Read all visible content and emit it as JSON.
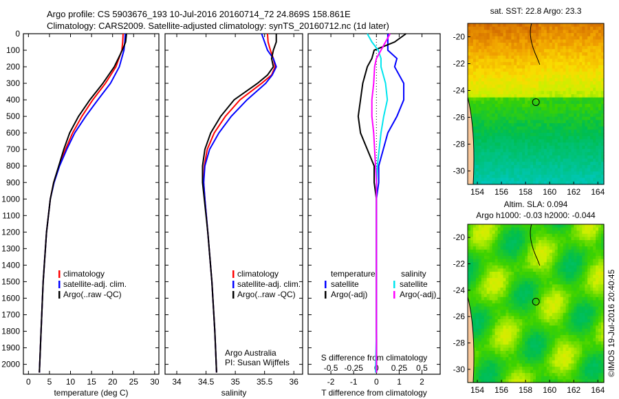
{
  "title": {
    "line1": "Argo profile: CS 5903676_193 10-Jul-2016 20160714_72 24.869S 158.861E",
    "line2": "Climatology: CARS2009. Satellite-adjusted climatology: synTS_20160712.nc (1d later)"
  },
  "credit": {
    "line1": "Argo Australia",
    "line2": "PI: Susan Wijffels",
    "stamp": "©IMOS 19-Jul-2016 20:40:45"
  },
  "colors": {
    "climatology": "#ff0000",
    "satellite": "#0000ff",
    "argo": "#000000",
    "s_satellite": "#00e5ee",
    "s_argo": "#ff00ff"
  },
  "chart_data": [
    {
      "type": "line",
      "name": "temperature",
      "xlabel": "temperature (deg C)",
      "ylabel": "",
      "xlim": [
        -1.2,
        31
      ],
      "ylim": [
        2060,
        0
      ],
      "xticks": [
        "0",
        "5",
        "10",
        "15",
        "20",
        "25",
        "30"
      ],
      "xtick_values": [
        0,
        5,
        10,
        15,
        20,
        25,
        30
      ],
      "yticks": [
        "0",
        "100",
        "200",
        "300",
        "400",
        "500",
        "600",
        "700",
        "800",
        "900",
        "1000",
        "1100",
        "1200",
        "1300",
        "1400",
        "1500",
        "1600",
        "1700",
        "1800",
        "1900",
        "2000"
      ],
      "ytick_values": [
        0,
        100,
        200,
        300,
        400,
        500,
        600,
        700,
        800,
        900,
        1000,
        1100,
        1200,
        1300,
        1400,
        1500,
        1600,
        1700,
        1800,
        1900,
        2000
      ],
      "depth": [
        0,
        50,
        100,
        200,
        300,
        400,
        500,
        600,
        700,
        800,
        900,
        1000,
        1200,
        1500,
        1800,
        2050
      ],
      "series": [
        {
          "name": "climatology",
          "color": "#ff0000",
          "values": [
            22.5,
            22.4,
            22.2,
            20.8,
            18.3,
            15.3,
            12.7,
            10.5,
            8.8,
            7.3,
            6.0,
            5.2,
            4.3,
            3.5,
            3.0,
            2.6
          ]
        },
        {
          "name": "satellite-adj. clim.",
          "color": "#0000ff",
          "values": [
            23.0,
            22.9,
            22.7,
            21.6,
            19.5,
            16.5,
            13.6,
            11.0,
            9.1,
            7.4,
            6.1,
            5.2,
            4.3,
            3.5,
            3.0,
            2.6
          ]
        },
        {
          "name": "Argo(..raw -QC)",
          "color": "#000000",
          "values": [
            23.3,
            23.1,
            22.3,
            20.4,
            17.7,
            14.6,
            11.9,
            9.8,
            8.4,
            7.2,
            6.0,
            5.2,
            4.3,
            3.5,
            3.0,
            2.6
          ]
        }
      ],
      "legend": [
        "climatology",
        "satellite-adj. clim.",
        "Argo(..raw -QC)"
      ]
    },
    {
      "type": "line",
      "name": "salinity",
      "xlabel": "salinity",
      "xlim": [
        33.8,
        36.15
      ],
      "ylim": [
        2060,
        0
      ],
      "xticks": [
        "34",
        "34.5",
        "35",
        "35.5",
        "36"
      ],
      "xtick_values": [
        34,
        34.5,
        35,
        35.5,
        36
      ],
      "depth": [
        0,
        50,
        100,
        150,
        200,
        250,
        300,
        400,
        500,
        600,
        700,
        800,
        900,
        1000,
        1200,
        1500,
        1800,
        2050
      ],
      "series": [
        {
          "name": "climatology",
          "color": "#ff0000",
          "values": [
            35.55,
            35.56,
            35.6,
            35.65,
            35.68,
            35.62,
            35.45,
            35.08,
            34.83,
            34.64,
            34.52,
            34.47,
            34.46,
            34.48,
            34.53,
            34.6,
            34.65,
            34.68
          ]
        },
        {
          "name": "satellite-adj. clim.",
          "color": "#0000ff",
          "values": [
            35.45,
            35.5,
            35.55,
            35.65,
            35.7,
            35.63,
            35.52,
            35.2,
            34.93,
            34.72,
            34.56,
            34.48,
            34.46,
            34.48,
            34.53,
            34.6,
            34.65,
            34.68
          ]
        },
        {
          "name": "Argo(..raw -QC)",
          "color": "#000000",
          "values": [
            35.7,
            35.7,
            35.65,
            35.62,
            35.65,
            35.55,
            35.38,
            34.98,
            34.75,
            34.58,
            34.48,
            34.44,
            34.44,
            34.47,
            34.53,
            34.6,
            34.65,
            34.68
          ]
        }
      ],
      "legend": [
        "climatology",
        "satellite-adj. clim.",
        "Argo(..raw -QC)"
      ]
    },
    {
      "type": "line",
      "name": "difference",
      "xlabel": "T difference from climatology",
      "x2label": "S difference from climatology",
      "xlim": [
        -3.0,
        2.8
      ],
      "ylim": [
        2060,
        0
      ],
      "xticks": [
        "-2",
        "-1",
        "0",
        "1",
        "2"
      ],
      "xtick_values": [
        -2,
        -1,
        0,
        1,
        2
      ],
      "x2ticks": [
        "-0.5",
        "-0.25",
        "0",
        "0.25",
        "0.5"
      ],
      "x2tick_values": [
        -0.5,
        -0.25,
        0,
        0.25,
        0.5
      ],
      "depth": [
        0,
        50,
        100,
        150,
        200,
        300,
        400,
        500,
        600,
        700,
        800,
        900,
        1000,
        1200,
        1500,
        1800,
        2050
      ],
      "series": [
        {
          "name": "temperature satellite",
          "color": "#0000ff",
          "units": "T",
          "values": [
            0.5,
            0.5,
            0.5,
            0.9,
            0.8,
            1.2,
            1.2,
            0.9,
            0.5,
            0.3,
            0.1,
            0.1,
            0.0,
            0.0,
            0.0,
            0.0,
            0.0
          ]
        },
        {
          "name": "temperature Argo(-adj)",
          "color": "#000000",
          "units": "T",
          "values": [
            1.3,
            0.8,
            -0.1,
            -0.2,
            -0.4,
            -0.6,
            -0.7,
            -0.8,
            -0.7,
            -0.4,
            -0.1,
            -0.1,
            0.0,
            0.0,
            0.0,
            0.0,
            0.0
          ]
        },
        {
          "name": "salinity satellite",
          "color": "#00e5ee",
          "units": "S",
          "values": [
            -0.1,
            -0.05,
            0.02,
            0.05,
            0.05,
            0.1,
            0.12,
            0.08,
            0.05,
            0.03,
            0.01,
            0.0,
            0.0,
            0.0,
            0.0,
            0.0,
            -0.01
          ]
        },
        {
          "name": "salinity Argo(-adj)",
          "color": "#ff00ff",
          "units": "S",
          "values": [
            0.15,
            0.1,
            0.05,
            0.0,
            -0.02,
            -0.03,
            -0.05,
            -0.05,
            -0.03,
            -0.02,
            -0.01,
            0.0,
            0.0,
            0.0,
            0.0,
            0.0,
            0.0
          ]
        }
      ],
      "legend": {
        "temperature_header": "temperature",
        "salinity_header": "salinity",
        "t_sat": "satellite",
        "t_argo": "Argo(-adj)",
        "s_sat": "satellite",
        "s_argo": "Argo(-adj)"
      }
    }
  ],
  "maps": [
    {
      "title": "sat. SST: 22.8 Argo: 23.3",
      "subtitle": "",
      "lon_ticks": [
        "154",
        "156",
        "158",
        "160",
        "162",
        "164"
      ],
      "lat_ticks": [
        "-20",
        "-22",
        "-24",
        "-26",
        "-28",
        "-30"
      ]
    },
    {
      "title": "Altim. SLA: 0.094",
      "subtitle": "Argo h1000: -0.03 h2000: -0.044",
      "lon_ticks": [
        "154",
        "156",
        "158",
        "160",
        "162",
        "164"
      ],
      "lat_ticks": [
        "-20",
        "-22",
        "-24",
        "-26",
        "-28",
        "-30"
      ]
    }
  ],
  "float_position": {
    "lat": -24.869,
    "lon": 158.861
  }
}
